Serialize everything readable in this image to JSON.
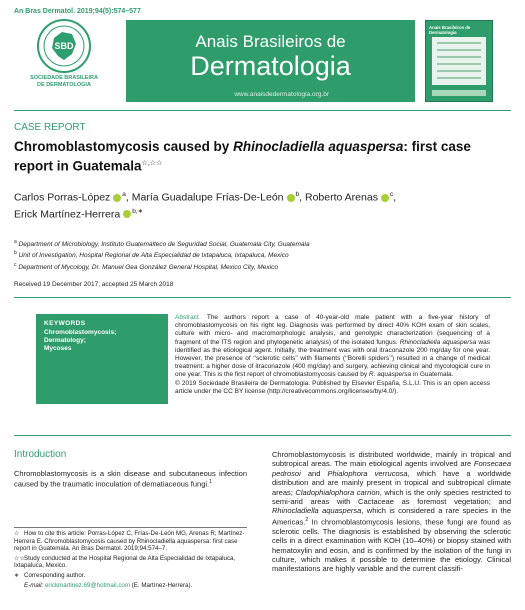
{
  "header": {
    "citation": "An Bras Dermatol. 2019;94(5):574–577",
    "society": [
      "SOCIEDADE BRASILEIRA",
      "DE DERMATOLOGIA"
    ],
    "logo_letters": "SBD",
    "journal_line1": "Anais Brasileiros de",
    "journal_line2": "Dermatologia",
    "url": "www.anaisdedermatologia.org.br",
    "cover_title": "Anais Brasileiros de Dermatologia",
    "accent_color": "#2f9c6c"
  },
  "article": {
    "type": "CASE REPORT",
    "title_pre": "Chromoblastomycosis caused by ",
    "title_species": "Rhinocladiella aquaspersa",
    "title_post": ": first case report in Guatemala",
    "title_marks": "☆,☆☆",
    "authors": [
      {
        "name": "Carlos Porras-López",
        "aff": "a",
        "sep": ", "
      },
      {
        "name": "María Guadalupe Frías-De-León",
        "aff": "b",
        "sep": ", "
      },
      {
        "name": "Roberto Arenas",
        "aff": "c",
        "sep": ","
      },
      {
        "name": "Erick Martínez-Herrera",
        "aff": "b,∗",
        "sep": ""
      }
    ],
    "affiliations": [
      {
        "mark": "a",
        "text": "Department of Microbiology, Instituto Guatemalteco de Seguridad Social, Guatemala City, Guatemala"
      },
      {
        "mark": "b",
        "text": "Unit of Investigation, Hospital Regional de Alta Especialidad de Ixtapaluca, Ixtapaluca, Mexico"
      },
      {
        "mark": "c",
        "text": "Department of Mycology, Dr. Manuel Gea González General Hospital, Mexico City, Mexico"
      }
    ],
    "received": "Received 19 December 2017; accepted 25 March 2018"
  },
  "keywords": {
    "heading": "KEYWORDS",
    "items": [
      "Chromoblastomycosis;",
      "Dermatology;",
      "Mycoses"
    ]
  },
  "abstract": {
    "label": "Abstract",
    "p1_a": "The authors report a case of 40-year-old male patient with a five-year history of chromoblastomycosis on his right leg. Diagnosis was performed by direct 40% KOH exam of skin scales, culture with micro- and macromorphologic analysis, and genotypic characterization (sequencing of a fragment of the ITS region and phylogenetic analysis) of the isolated fungus. ",
    "p1_species": "Rhinocladiella aquaspersa",
    "p1_b": " was identified as the etiological agent. Initially, the treatment was with oral itraconazole 200 mg/day for one year. However, the presence of ‘‘sclerotic cells’’ with filaments (‘‘Borelli spiders’’) resulted in a change of medical treatment: a higher dose of itraconazole (400 mg/day) and surgery, achieving clinical and mycological cure in one year. This is the first report of chromoblastomycosis caused by ",
    "p1_species2": "R. aquaspersa",
    "p1_c": " in Guatemala.",
    "p2": "© 2019 Sociedade Brasileira de Dermatologia. Published by Elsevier España, S.L.U. This is an open access article under the CC BY license (http://creativecommons.org/licenses/by/4.0/)."
  },
  "intro": {
    "heading": "Introduction",
    "text": "Chromoblastomycosis is a skin disease and subcutaneous infection caused by the traumatic inoculation of dematiaceous fungi.",
    "ref": "1"
  },
  "right_col": {
    "s1": "Chromoblastomycosis is distributed worldwide, mainly in tropical and subtropical areas. The main etiological agents involved are ",
    "s1_i1": "Fonsecaea pedrosoi",
    "s1_and": " and ",
    "s1_i2": "Phialophora verrucosa",
    "s2": ", which have a worldwide distribution and are mainly present in tropical and subtropical climate areas; ",
    "s2_i": "Cladophialophora carrion",
    "s3": ", which is the only species restricted to semi-arid areas with Cactaceae as foremost vegetation; and ",
    "s3_i": "Rhinocladiella aquaspersa",
    "s4": ", which is considered a rare species in the Americas.",
    "ref1": "2",
    "s5": " In chromoblastomycosis lesions, these fungi are found as sclerotic cells. The diagnosis is established by observing the sclerotic cells in a direct examination with KOH (10–40%) or biopsy stained with hematoxylin and eosin, and is confirmed by the isolation of the fungi in culture, which makes it possible to determine the etiology. Clinical manifestations are highly variable and the current classifi-"
  },
  "footnotes": [
    {
      "mark": "☆",
      "text": "How to cite this article: Porras-López C, Frías-De-León MG, Arenas R, Martínez-Herrera E. Chromoblastomycosis caused by Rhinocladiella aquaspersa: first case report in Guatemala. An Bras Dermatol. 2019;94:574–7."
    },
    {
      "mark": "☆☆",
      "text": "Study conducted at the Hospital Regional de Alta Especialidad de Ixtapaluca, Ixtapaluca, Mexico."
    },
    {
      "mark": "∗",
      "text": "Corresponding author."
    }
  ],
  "email": {
    "label": "E-mail: ",
    "address": "erickmartinez.69@hotmail.com",
    "tail": " (E. Martínez-Herrera)."
  }
}
